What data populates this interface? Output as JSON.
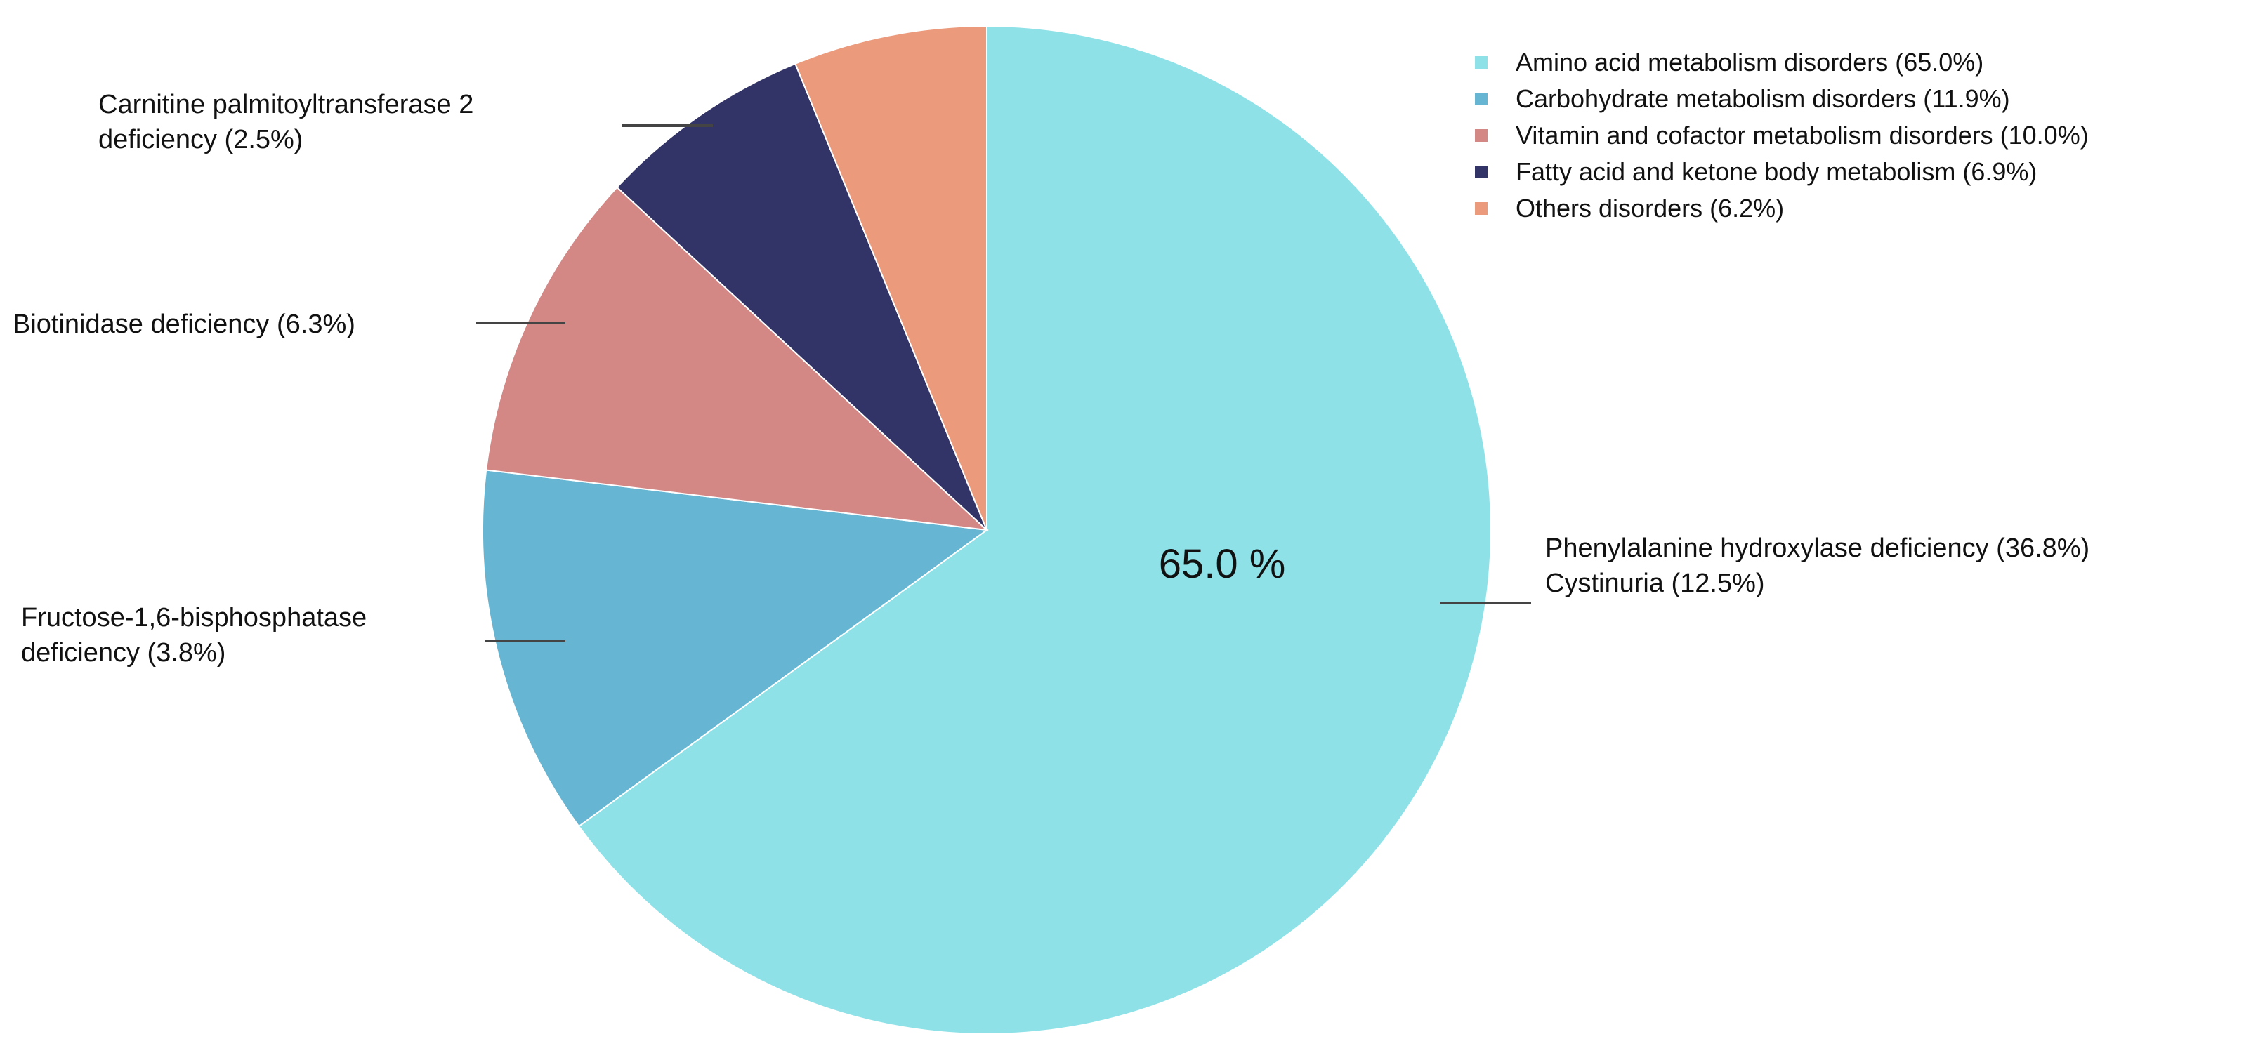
{
  "chart_data": {
    "type": "pie",
    "title": "",
    "slices": [
      {
        "label": "Amino acid metabolism disorders (65.0%)",
        "value": 65.0,
        "color": "#8ee1e7"
      },
      {
        "label": "Carbohydrate metabolism disorders (11.9%)",
        "value": 11.9,
        "color": "#66b6d3"
      },
      {
        "label": "Vitamin and cofactor metabolism disorders (10.0%)",
        "value": 10.0,
        "color": "#d38886"
      },
      {
        "label": "Fatty acid and ketone body metabolism (6.9%)",
        "value": 6.9,
        "color": "#323366"
      },
      {
        "label": "Others disorders (6.2%)",
        "value": 6.2,
        "color": "#ec9a7c"
      }
    ],
    "center_label": "65.0 %",
    "annotations": [
      {
        "lines": [
          "Phenylalanine hydroxylase deficiency (36.8%)",
          "Cystinuria (12.5%)"
        ],
        "slice": "Amino acid metabolism disorders (65.0%)"
      },
      {
        "lines": [
          "Fructose-1,6-bisphosphatase",
          "deficiency (3.8%)"
        ],
        "slice": "Carbohydrate metabolism disorders (11.9%)"
      },
      {
        "lines": [
          "Biotinidase deficiency (6.3%)"
        ],
        "slice": "Vitamin and cofactor metabolism disorders (10.0%)"
      },
      {
        "lines": [
          "Carnitine palmitoyltransferase 2",
          "deficiency (2.5%)"
        ],
        "slice": "Fatty acid and ketone body metabolism (6.9%)"
      }
    ],
    "legend_position": "top-right"
  }
}
